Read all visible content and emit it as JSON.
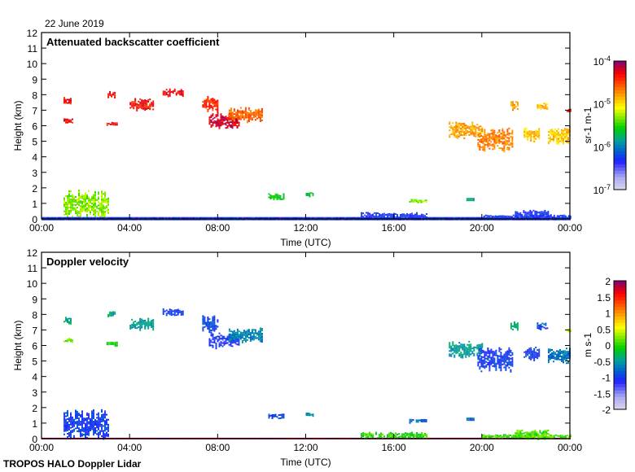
{
  "date_label": "22 June 2019",
  "footer": "TROPOS HALO Doppler Lidar",
  "chart_data": [
    {
      "type": "heatmap",
      "title": "Attenuated backscatter coefficient",
      "xlabel": "Time (UTC)",
      "ylabel": "Height (km)",
      "xlim": [
        0,
        24
      ],
      "ylim": [
        0,
        12
      ],
      "x_ticks": [
        0,
        4,
        8,
        12,
        16,
        20,
        24
      ],
      "x_tick_labels": [
        "00:00",
        "04:00",
        "08:00",
        "12:00",
        "16:00",
        "20:00",
        "00:00"
      ],
      "y_ticks": [
        0,
        1,
        2,
        3,
        4,
        5,
        6,
        7,
        8,
        9,
        10,
        11,
        12
      ],
      "colorbar": {
        "label": "sr-1 m-1",
        "scale": "log10",
        "range": [
          -7,
          -4
        ],
        "tick_labels": [
          "10-7",
          "10-6",
          "10-5",
          "10-4"
        ],
        "tick_values": [
          -7,
          -6,
          -5,
          -4
        ]
      },
      "patches": [
        {
          "t": [
            1.0,
            1.35
          ],
          "z": [
            7.35,
            7.85
          ],
          "v": -4.35
        },
        {
          "t": [
            1.0,
            1.4
          ],
          "z": [
            6.2,
            6.5
          ],
          "v": -4.3
        },
        {
          "t": [
            3.0,
            3.3
          ],
          "z": [
            7.85,
            8.25
          ],
          "v": -4.3
        },
        {
          "t": [
            2.95,
            3.45
          ],
          "z": [
            6.0,
            6.25
          ],
          "v": -4.35
        },
        {
          "t": [
            4.0,
            5.1
          ],
          "z": [
            7.0,
            7.8
          ],
          "v": -4.35
        },
        {
          "t": [
            5.5,
            6.4
          ],
          "z": [
            7.9,
            8.4
          ],
          "v": -4.3
        },
        {
          "t": [
            7.3,
            8.0
          ],
          "z": [
            6.9,
            8.0
          ],
          "v": -4.4
        },
        {
          "t": [
            7.6,
            9.0
          ],
          "z": [
            5.85,
            6.9
          ],
          "v": -4.2
        },
        {
          "t": [
            8.5,
            10.0
          ],
          "z": [
            6.2,
            7.2
          ],
          "v": -4.6
        },
        {
          "t": [
            10.3,
            11.0
          ],
          "z": [
            1.25,
            1.65
          ],
          "v": -5.6
        },
        {
          "t": [
            12.0,
            12.35
          ],
          "z": [
            1.45,
            1.75
          ],
          "v": -5.6
        },
        {
          "t": [
            16.7,
            17.5
          ],
          "z": [
            1.05,
            1.3
          ],
          "v": -5.3
        },
        {
          "t": [
            19.3,
            19.6
          ],
          "z": [
            1.15,
            1.35
          ],
          "v": -5.8
        },
        {
          "t": [
            18.5,
            20.0
          ],
          "z": [
            5.2,
            6.3
          ],
          "v": -4.8
        },
        {
          "t": [
            19.8,
            21.4
          ],
          "z": [
            4.3,
            5.9
          ],
          "v": -4.7
        },
        {
          "t": [
            21.3,
            21.6
          ],
          "z": [
            7.0,
            7.6
          ],
          "v": -4.8
        },
        {
          "t": [
            21.9,
            22.6
          ],
          "z": [
            5.0,
            6.0
          ],
          "v": -4.9
        },
        {
          "t": [
            22.5,
            23.0
          ],
          "z": [
            7.0,
            7.5
          ],
          "v": -4.9
        },
        {
          "t": [
            23.0,
            24.0
          ],
          "z": [
            4.8,
            6.0
          ],
          "v": -4.9
        },
        {
          "t": [
            23.85,
            24.0
          ],
          "z": [
            6.9,
            7.15
          ],
          "v": -4.3
        },
        {
          "t": [
            1.0,
            3.0
          ],
          "z": [
            0.0,
            1.9
          ],
          "v": -5.3
        },
        {
          "t": [
            0.0,
            24.0
          ],
          "z": [
            0.0,
            0.12
          ],
          "v": -6.3
        },
        {
          "t": [
            14.5,
            17.5
          ],
          "z": [
            0.0,
            0.45
          ],
          "v": -6.3
        },
        {
          "t": [
            20.0,
            24.0
          ],
          "z": [
            0.0,
            0.3
          ],
          "v": -6.3
        },
        {
          "t": [
            21.5,
            23.0
          ],
          "z": [
            0.0,
            0.6
          ],
          "v": -6.3
        }
      ]
    },
    {
      "type": "heatmap",
      "title": "Doppler velocity",
      "xlabel": "Time (UTC)",
      "ylabel": "Height (km)",
      "xlim": [
        0,
        24
      ],
      "ylim": [
        0,
        12
      ],
      "x_ticks": [
        0,
        4,
        8,
        12,
        16,
        20,
        24
      ],
      "x_tick_labels": [
        "00:00",
        "04:00",
        "08:00",
        "12:00",
        "16:00",
        "20:00",
        "00:00"
      ],
      "y_ticks": [
        0,
        1,
        2,
        3,
        4,
        5,
        6,
        7,
        8,
        9,
        10,
        11,
        12
      ],
      "colorbar": {
        "label": "m s-1",
        "scale": "linear",
        "range": [
          -2,
          2
        ],
        "tick_labels": [
          "-2",
          "-1.5",
          "-1",
          "-0.5",
          "0",
          "0.5",
          "1",
          "1.5",
          "2"
        ],
        "tick_values": [
          -2,
          -1.5,
          -1,
          -0.5,
          0,
          0.5,
          1,
          1.5,
          2
        ]
      },
      "patches": [
        {
          "t": [
            1.0,
            1.35
          ],
          "z": [
            7.35,
            7.85
          ],
          "v": -0.4
        },
        {
          "t": [
            1.0,
            1.4
          ],
          "z": [
            6.2,
            6.5
          ],
          "v": 0.2
        },
        {
          "t": [
            3.0,
            3.3
          ],
          "z": [
            7.85,
            8.25
          ],
          "v": -0.4
        },
        {
          "t": [
            2.95,
            3.45
          ],
          "z": [
            6.0,
            6.25
          ],
          "v": -0.1
        },
        {
          "t": [
            4.0,
            5.1
          ],
          "z": [
            7.0,
            7.8
          ],
          "v": -0.5
        },
        {
          "t": [
            5.5,
            6.4
          ],
          "z": [
            7.9,
            8.4
          ],
          "v": -1.0
        },
        {
          "t": [
            7.3,
            8.0
          ],
          "z": [
            6.9,
            8.0
          ],
          "v": -0.9
        },
        {
          "t": [
            7.6,
            9.0
          ],
          "z": [
            5.85,
            6.9
          ],
          "v": -1.1
        },
        {
          "t": [
            8.5,
            10.0
          ],
          "z": [
            6.2,
            7.2
          ],
          "v": -0.6
        },
        {
          "t": [
            10.3,
            11.0
          ],
          "z": [
            1.25,
            1.65
          ],
          "v": -0.9
        },
        {
          "t": [
            12.0,
            12.35
          ],
          "z": [
            1.45,
            1.75
          ],
          "v": -0.5
        },
        {
          "t": [
            16.7,
            17.5
          ],
          "z": [
            1.05,
            1.3
          ],
          "v": -0.8
        },
        {
          "t": [
            19.3,
            19.6
          ],
          "z": [
            1.15,
            1.35
          ],
          "v": -0.7
        },
        {
          "t": [
            18.5,
            20.0
          ],
          "z": [
            5.2,
            6.3
          ],
          "v": -0.5
        },
        {
          "t": [
            19.8,
            21.4
          ],
          "z": [
            4.3,
            5.9
          ],
          "v": -1.0
        },
        {
          "t": [
            21.3,
            21.6
          ],
          "z": [
            7.0,
            7.6
          ],
          "v": -0.3
        },
        {
          "t": [
            21.9,
            22.6
          ],
          "z": [
            5.0,
            6.0
          ],
          "v": -1.0
        },
        {
          "t": [
            22.5,
            23.0
          ],
          "z": [
            7.0,
            7.5
          ],
          "v": -0.9
        },
        {
          "t": [
            23.0,
            24.0
          ],
          "z": [
            4.8,
            6.0
          ],
          "v": -0.7
        },
        {
          "t": [
            23.85,
            24.0
          ],
          "z": [
            6.9,
            7.15
          ],
          "v": 0.5
        },
        {
          "t": [
            1.0,
            3.0
          ],
          "z": [
            0.0,
            1.9
          ],
          "v": -1.0
        },
        {
          "t": [
            0.0,
            24.0
          ],
          "z": [
            0.0,
            0.06
          ],
          "v": 1.9
        },
        {
          "t": [
            14.5,
            17.5
          ],
          "z": [
            0.0,
            0.45
          ],
          "v": 0.0
        },
        {
          "t": [
            20.0,
            24.0
          ],
          "z": [
            0.0,
            0.3
          ],
          "v": 0.1
        },
        {
          "t": [
            21.5,
            23.0
          ],
          "z": [
            0.0,
            0.6
          ],
          "v": 0.1
        }
      ]
    }
  ]
}
